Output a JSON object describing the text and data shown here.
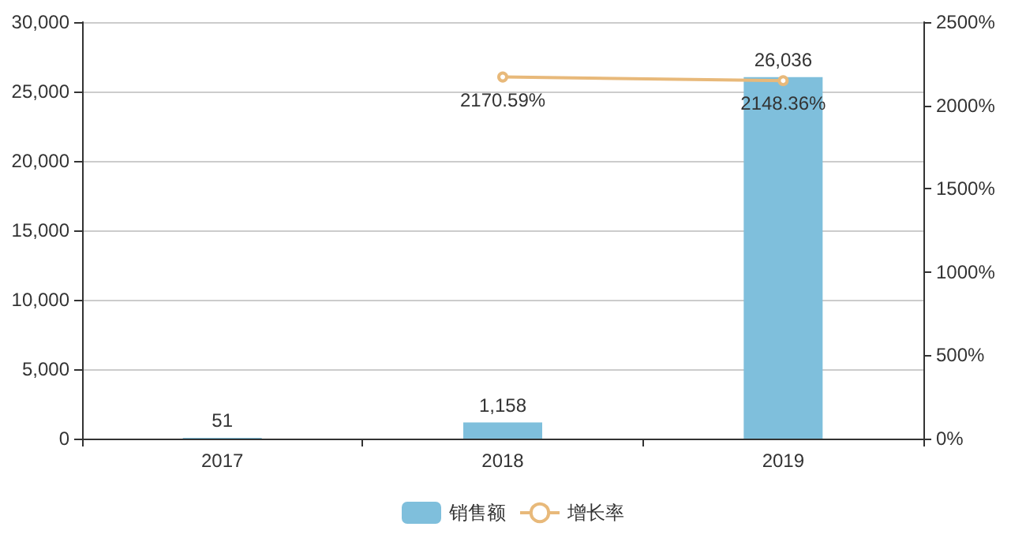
{
  "chart_data": {
    "type": "bar",
    "categories": [
      "2017",
      "2018",
      "2019"
    ],
    "series": [
      {
        "name": "销售额",
        "color": "#7fbfdc",
        "values": [
          51,
          1158,
          26036
        ],
        "value_labels": [
          "51",
          "1,158",
          "26,036"
        ]
      },
      {
        "name": "增长率",
        "type": "line",
        "axis": "y2",
        "color": "#e8b97a",
        "values": [
          null,
          2170.59,
          2148.36
        ],
        "value_labels": [
          null,
          "2170.59%",
          "2148.36%"
        ],
        "marker": "circle"
      }
    ],
    "ylim": [
      0,
      30000
    ],
    "yticks": [
      {
        "value": 0,
        "label": "0"
      },
      {
        "value": 5000,
        "label": "5,000"
      },
      {
        "value": 10000,
        "label": "10,000"
      },
      {
        "value": 15000,
        "label": "15,000"
      },
      {
        "value": 20000,
        "label": "20,000"
      },
      {
        "value": 25000,
        "label": "25,000"
      },
      {
        "value": 30000,
        "label": "30,000"
      }
    ],
    "y2lim": [
      0,
      2500
    ],
    "y2ticks": [
      {
        "value": 0,
        "label": "0%"
      },
      {
        "value": 500,
        "label": "500%"
      },
      {
        "value": 1000,
        "label": "1000%"
      },
      {
        "value": 1500,
        "label": "1500%"
      },
      {
        "value": 2000,
        "label": "2000%"
      },
      {
        "value": 2500,
        "label": "2500%"
      }
    ],
    "grid": "y",
    "legend": "bottom"
  }
}
